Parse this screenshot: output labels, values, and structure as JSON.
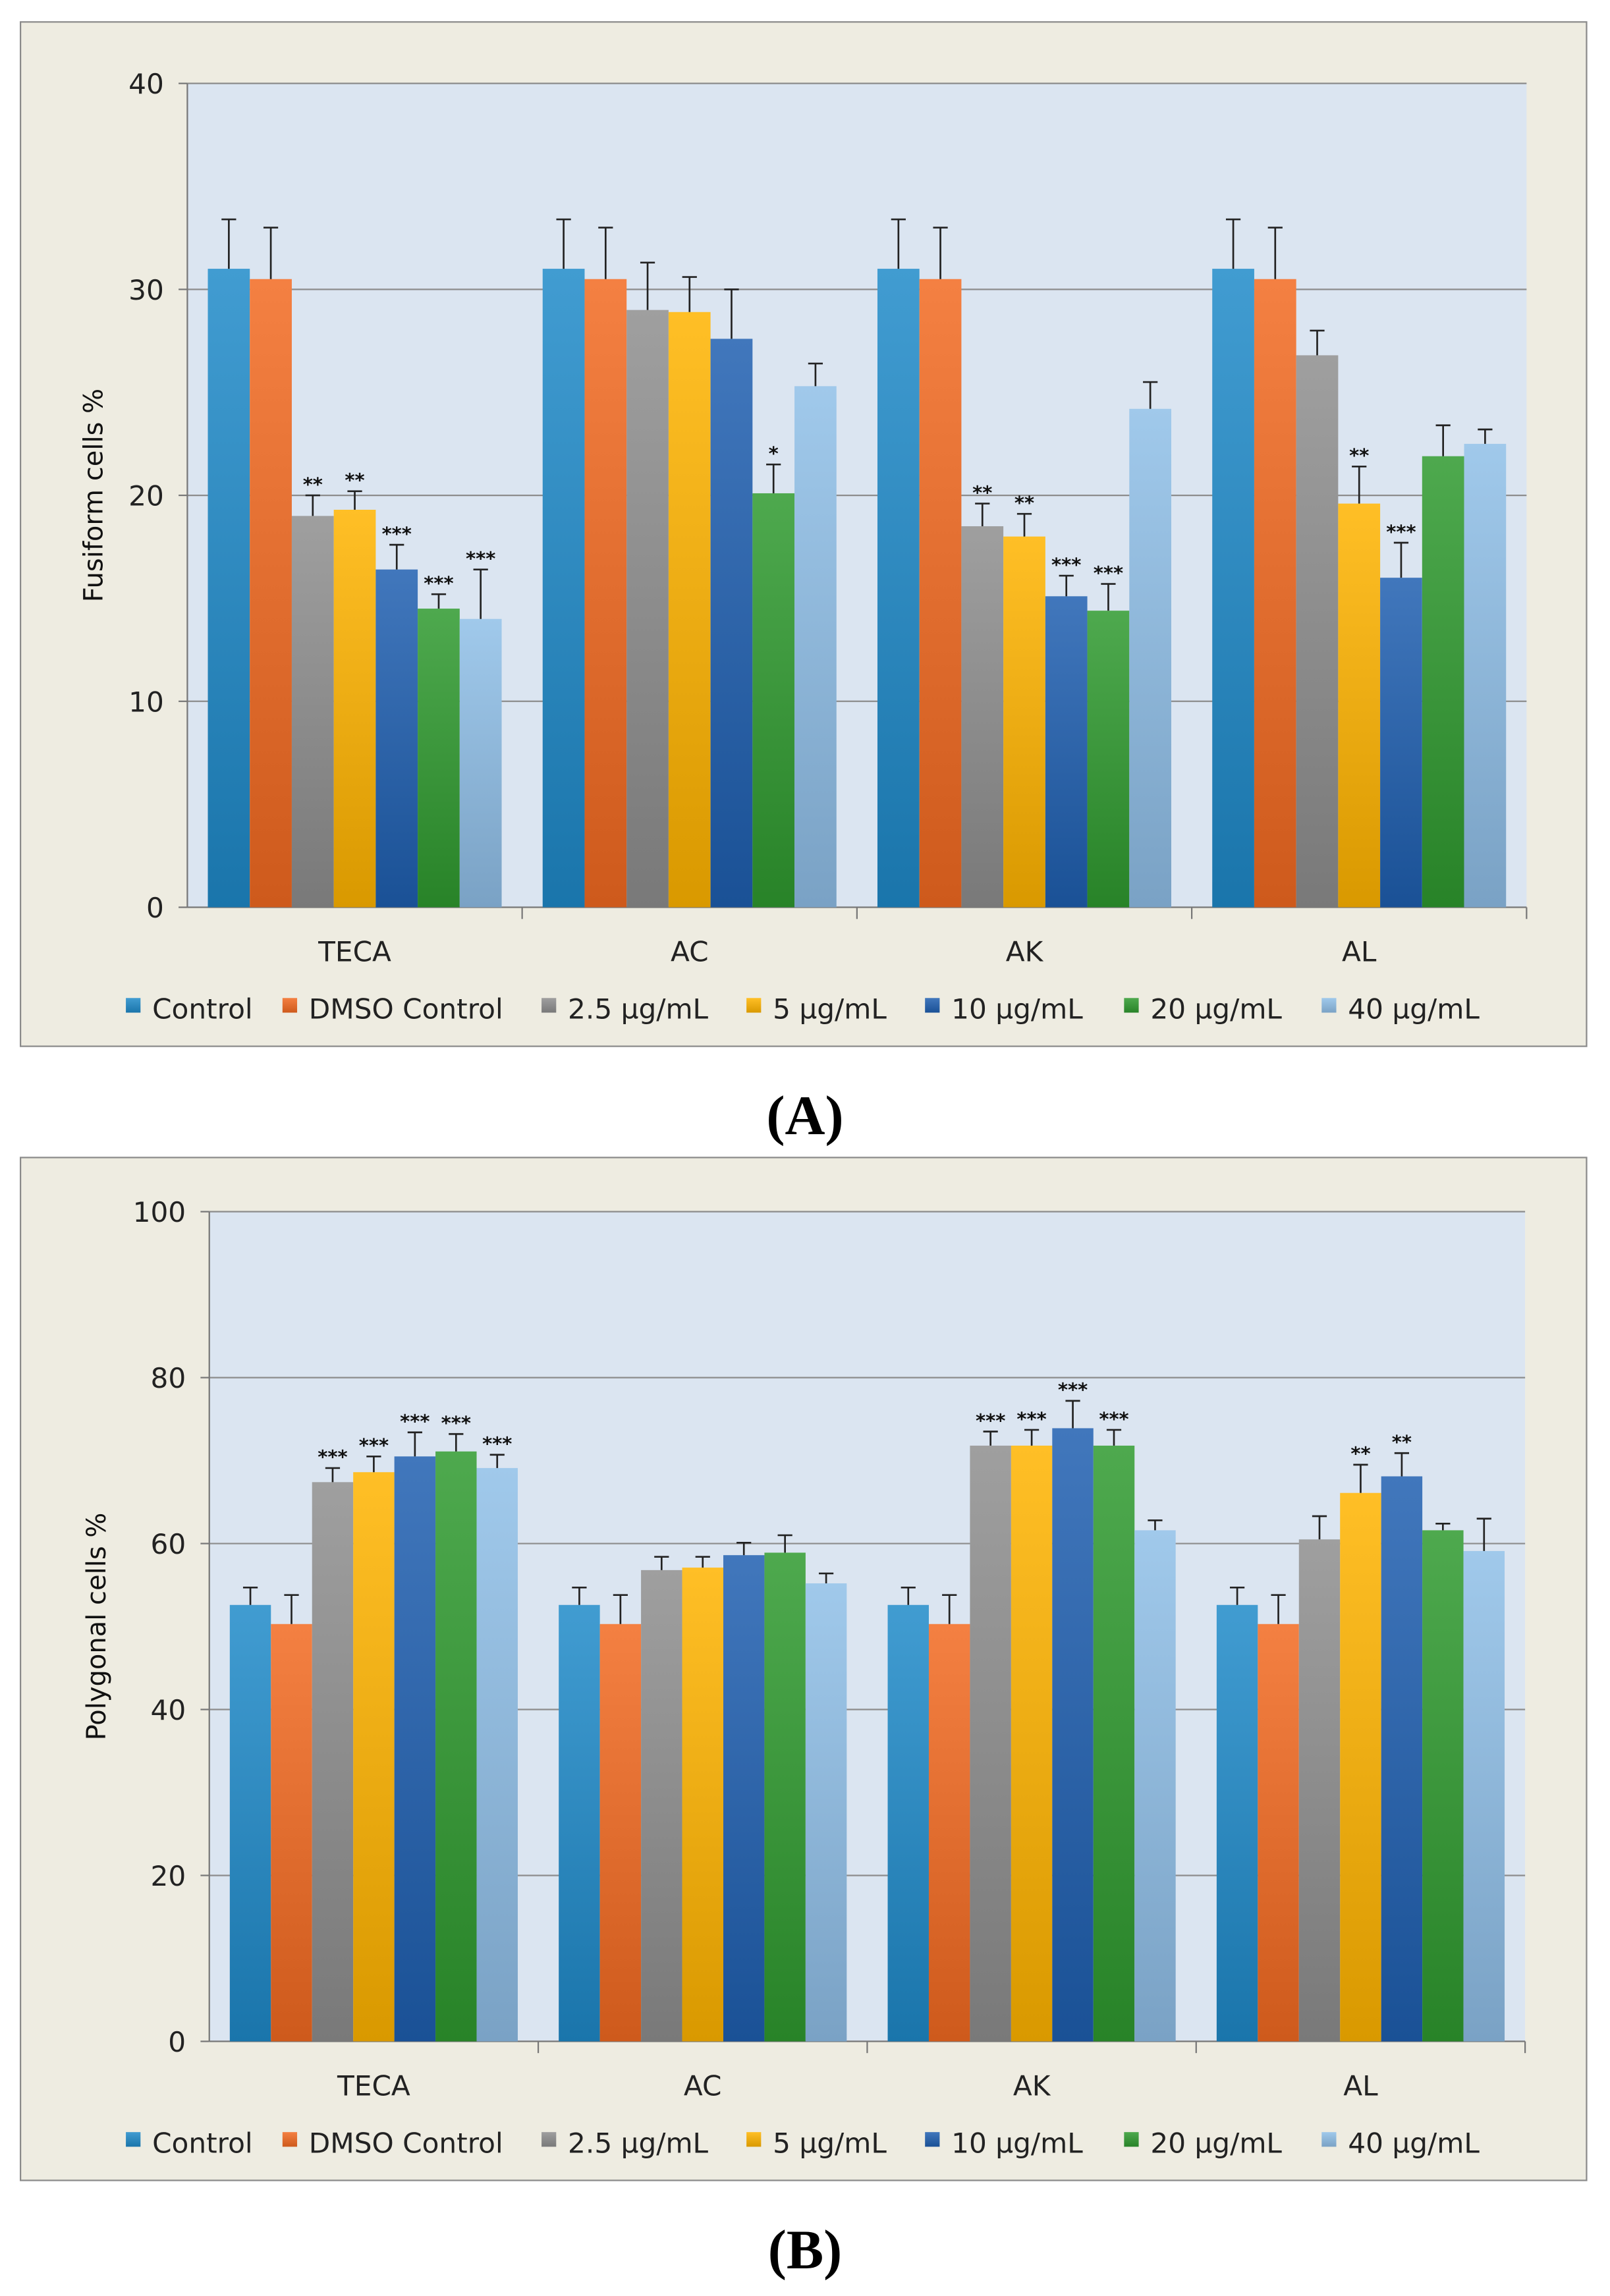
{
  "colors": {
    "Control": "#1f8ac9",
    "DMSO Control": "#f26a21",
    "2.5 µg/mL": "#8e8e8e",
    "5 µg/mL": "#ffb400",
    "10 µg/mL": "#1f5fb0",
    "20 µg/mL": "#2f9a2f",
    "40 µg/mL": "#8fbfe8",
    "frame": "#eeece1",
    "plot": "#dbe5f1"
  },
  "chart_data": [
    {
      "type": "bar",
      "panel_label": "(A)",
      "title": "",
      "xlabel": "",
      "ylabel": "Fusiform cells %",
      "ylim": [
        0,
        40
      ],
      "yticks": [
        "0",
        "10",
        "20",
        "30",
        "40"
      ],
      "grid": true,
      "legend_position": "bottom",
      "categories": [
        "TECA",
        "AC",
        "AK",
        "AL"
      ],
      "series": [
        {
          "name": "Control",
          "values": [
            31.0,
            31.0,
            31.0,
            31.0
          ],
          "errors": [
            2.4,
            2.4,
            2.4,
            2.4
          ],
          "sig": [
            "",
            "",
            "",
            ""
          ]
        },
        {
          "name": "DMSO Control",
          "values": [
            30.5,
            30.5,
            30.5,
            30.5
          ],
          "errors": [
            2.5,
            2.5,
            2.5,
            2.5
          ],
          "sig": [
            "",
            "",
            "",
            ""
          ]
        },
        {
          "name": "2.5 µg/mL",
          "values": [
            19.0,
            29.0,
            18.5,
            26.8
          ],
          "errors": [
            1.0,
            2.3,
            1.1,
            1.2
          ],
          "sig": [
            "**",
            "",
            "**",
            ""
          ]
        },
        {
          "name": "5 µg/mL",
          "values": [
            19.3,
            28.9,
            18.0,
            19.6
          ],
          "errors": [
            0.9,
            1.7,
            1.1,
            1.8
          ],
          "sig": [
            "**",
            "",
            "**",
            "**"
          ]
        },
        {
          "name": "10 µg/mL",
          "values": [
            16.4,
            27.6,
            15.1,
            16.0
          ],
          "errors": [
            1.2,
            2.4,
            1.0,
            1.7
          ],
          "sig": [
            "***",
            "",
            "***",
            "***"
          ]
        },
        {
          "name": "20 µg/mL",
          "values": [
            14.5,
            20.1,
            14.4,
            21.9
          ],
          "errors": [
            0.7,
            1.4,
            1.3,
            1.5
          ],
          "sig": [
            "***",
            "*",
            "***",
            ""
          ]
        },
        {
          "name": "40 µg/mL",
          "values": [
            14.0,
            25.3,
            24.2,
            22.5
          ],
          "errors": [
            2.4,
            1.1,
            1.3,
            0.7
          ],
          "sig": [
            "***",
            "",
            "",
            ""
          ]
        }
      ]
    },
    {
      "type": "bar",
      "panel_label": "(B)",
      "title": "",
      "xlabel": "",
      "ylabel": "Polygonal cells %",
      "ylim": [
        0,
        100
      ],
      "yticks": [
        "0",
        "20",
        "40",
        "60",
        "80",
        "100"
      ],
      "grid": true,
      "legend_position": "bottom",
      "categories": [
        "TECA",
        "AC",
        "AK",
        "AL"
      ],
      "series": [
        {
          "name": "Control",
          "values": [
            52.6,
            52.6,
            52.6,
            52.6
          ],
          "errors": [
            2.1,
            2.1,
            2.1,
            2.1
          ],
          "sig": [
            "",
            "",
            "",
            ""
          ]
        },
        {
          "name": "DMSO Control",
          "values": [
            50.3,
            50.3,
            50.3,
            50.3
          ],
          "errors": [
            3.5,
            3.5,
            3.5,
            3.5
          ],
          "sig": [
            "",
            "",
            "",
            ""
          ]
        },
        {
          "name": "2.5 µg/mL",
          "values": [
            67.4,
            56.8,
            71.8,
            60.5
          ],
          "errors": [
            1.7,
            1.6,
            1.7,
            2.8
          ],
          "sig": [
            "***",
            "",
            "***",
            ""
          ]
        },
        {
          "name": "5 µg/mL",
          "values": [
            68.6,
            57.1,
            71.8,
            66.1
          ],
          "errors": [
            1.9,
            1.3,
            1.9,
            3.4
          ],
          "sig": [
            "***",
            "",
            "***",
            "**"
          ]
        },
        {
          "name": "10 µg/mL",
          "values": [
            70.5,
            58.6,
            73.9,
            68.1
          ],
          "errors": [
            2.9,
            1.5,
            3.3,
            2.8
          ],
          "sig": [
            "***",
            "",
            "***",
            "**"
          ]
        },
        {
          "name": "20 µg/mL",
          "values": [
            71.1,
            58.9,
            71.8,
            61.6
          ],
          "errors": [
            2.1,
            2.1,
            1.9,
            0.8
          ],
          "sig": [
            "***",
            "",
            "***",
            ""
          ]
        },
        {
          "name": "40 µg/mL",
          "values": [
            69.1,
            55.2,
            61.6,
            59.1
          ],
          "errors": [
            1.6,
            1.2,
            1.2,
            3.9
          ],
          "sig": [
            "***",
            "",
            "",
            ""
          ]
        }
      ]
    }
  ]
}
